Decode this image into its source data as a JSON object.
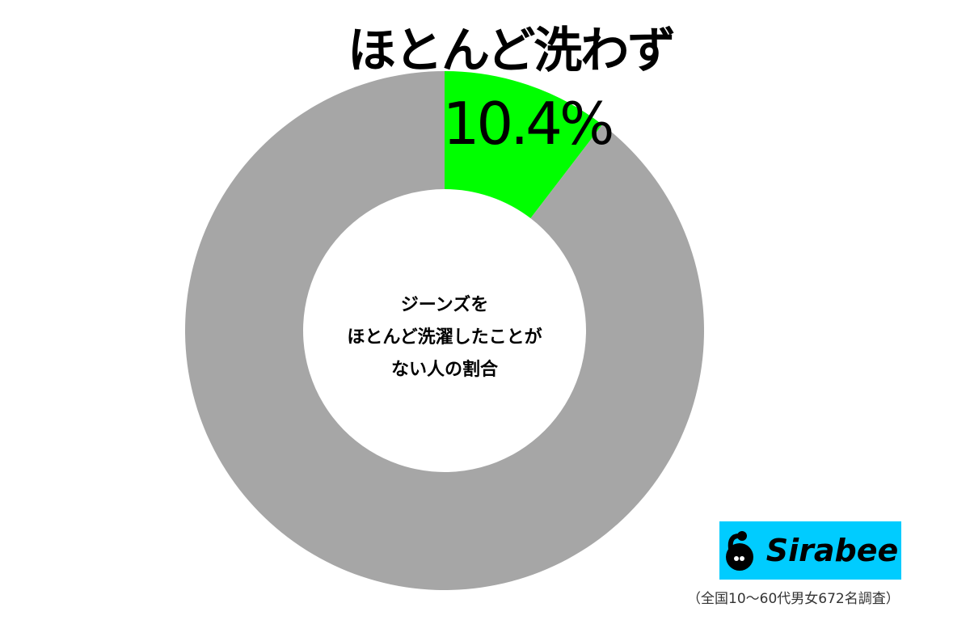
{
  "chart_data": {
    "type": "pie",
    "donut": true,
    "title": "ほとんど洗わず",
    "center_label": [
      "ジーンズを",
      "ほとんど洗濯したことが",
      "ない人の割合"
    ],
    "slices": [
      {
        "name": "ほとんど洗わず",
        "value": 10.4,
        "label": "10.4%",
        "color": "#00ff00"
      },
      {
        "value": 89.6,
        "color": "#a6a6a6"
      }
    ],
    "start_angle": "12 o'clock",
    "direction": "clockwise",
    "legend": "none"
  },
  "logo": {
    "text": "Sirabee",
    "background": "#00ccff"
  },
  "footnote": "（全国10〜60代男女672名調査）"
}
